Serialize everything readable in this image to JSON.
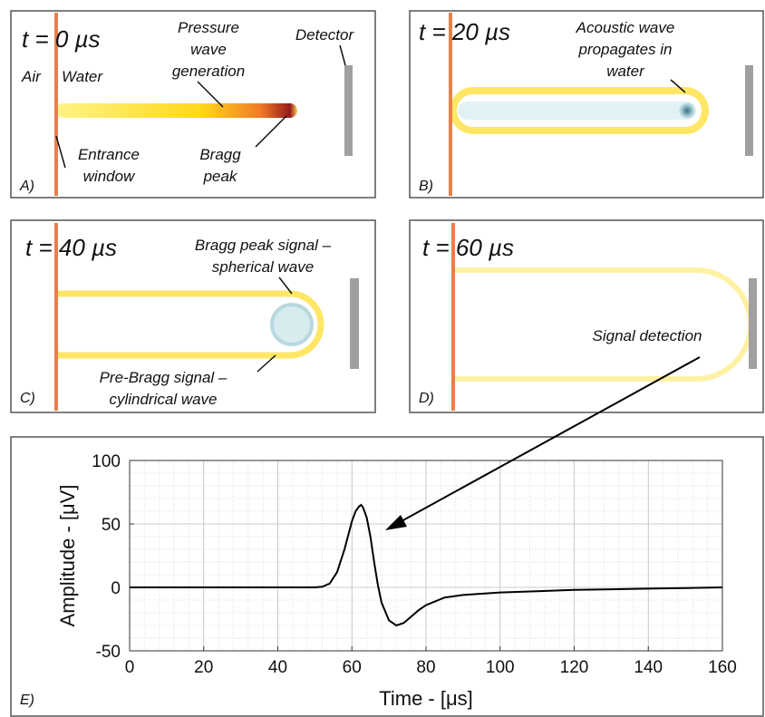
{
  "panels": [
    {
      "time": "t = 0 µs",
      "label": "A)",
      "annotations": [
        [
          "Air"
        ],
        [
          "Water"
        ],
        [
          "Pressure",
          "wave",
          "generation"
        ],
        [
          "Detector"
        ],
        [
          "Entrance",
          "window"
        ],
        [
          "Bragg",
          "peak"
        ]
      ]
    },
    {
      "time": "t = 20 µs",
      "label": "B)",
      "annotations": [
        [
          "Acoustic wave",
          "propagates in",
          "water"
        ]
      ]
    },
    {
      "time": "t = 40 µs",
      "label": "C)",
      "annotations": [
        [
          "Bragg peak signal –",
          "spherical wave"
        ],
        [
          "Pre-Bragg  signal –",
          "cylindrical wave"
        ]
      ]
    },
    {
      "time": "t = 60 µs",
      "label": "D)",
      "annotations": [
        [
          "Signal detection"
        ]
      ]
    }
  ],
  "chart_data": {
    "type": "line",
    "panel_label": "E)",
    "xlabel": "Time - [μs]",
    "ylabel": "Amplitude - [μV]",
    "x": [
      0,
      10,
      20,
      30,
      40,
      50,
      52,
      54,
      56,
      58,
      60,
      61,
      62,
      62.5,
      63,
      64,
      65,
      66,
      67,
      68,
      70,
      72,
      74,
      76,
      78,
      80,
      85,
      90,
      95,
      100,
      110,
      120,
      130,
      140,
      150,
      160
    ],
    "values": [
      0,
      0,
      0,
      0,
      0,
      0,
      0.5,
      3,
      12,
      30,
      52,
      60,
      64,
      65,
      63,
      55,
      40,
      20,
      2,
      -12,
      -26,
      -30,
      -28,
      -23,
      -18,
      -14,
      -8,
      -6,
      -5,
      -4,
      -3,
      -2,
      -1.5,
      -1,
      -0.5,
      0
    ],
    "color": "#000000",
    "xlim": [
      0,
      160
    ],
    "ylim": [
      -50,
      100
    ],
    "xticks": [
      0,
      20,
      40,
      60,
      80,
      100,
      120,
      140,
      160
    ],
    "yticks": [
      -50,
      0,
      50,
      100
    ],
    "grid": true
  }
}
